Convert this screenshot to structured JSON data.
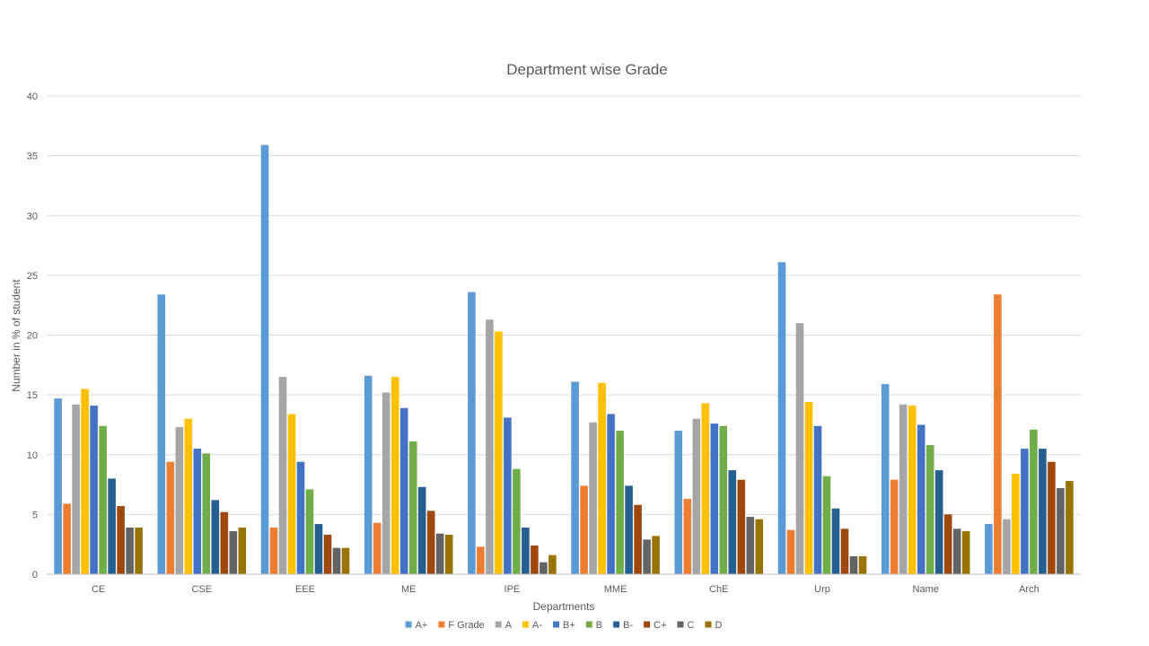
{
  "chart_data": {
    "type": "bar",
    "title": "Department wise Grade",
    "xlabel": "Departments",
    "ylabel": "Number in % of student",
    "ylim": [
      0,
      40
    ],
    "yticks": [
      0,
      5,
      10,
      15,
      20,
      25,
      30,
      35,
      40
    ],
    "grid": true,
    "legend_position": "bottom",
    "categories": [
      "CE",
      "CSE",
      "EEE",
      "ME",
      "IPE",
      "MME",
      "ChE",
      "Urp",
      "Name",
      "Arch"
    ],
    "series": [
      {
        "name": "A+",
        "color": "#5B9BD5",
        "values": [
          14.7,
          23.4,
          35.9,
          16.6,
          23.6,
          16.1,
          12.0,
          26.1,
          15.9,
          4.2
        ]
      },
      {
        "name": "F Grade",
        "color": "#ED7D31",
        "values": [
          5.9,
          9.4,
          3.9,
          4.3,
          2.3,
          7.4,
          6.3,
          3.7,
          7.9,
          23.4
        ]
      },
      {
        "name": "A",
        "color": "#A5A5A5",
        "values": [
          14.2,
          12.3,
          16.5,
          15.2,
          21.3,
          12.7,
          13.0,
          21.0,
          14.2,
          4.6
        ]
      },
      {
        "name": "A-",
        "color": "#FFC000",
        "values": [
          15.5,
          13.0,
          13.4,
          16.5,
          20.3,
          16.0,
          14.3,
          14.4,
          14.1,
          8.4
        ]
      },
      {
        "name": "B+",
        "color": "#4472C4",
        "values": [
          14.1,
          10.5,
          9.4,
          13.9,
          13.1,
          13.4,
          12.6,
          12.4,
          12.5,
          10.5
        ]
      },
      {
        "name": "B",
        "color": "#70AD47",
        "values": [
          12.4,
          10.1,
          7.1,
          11.1,
          8.8,
          12.0,
          12.4,
          8.2,
          10.8,
          12.1
        ]
      },
      {
        "name": "B-",
        "color": "#255E91",
        "values": [
          8.0,
          6.2,
          4.2,
          7.3,
          3.9,
          7.4,
          8.7,
          5.5,
          8.7,
          10.5
        ]
      },
      {
        "name": "C+",
        "color": "#9E480E",
        "values": [
          5.7,
          5.2,
          3.3,
          5.3,
          2.4,
          5.8,
          7.9,
          3.8,
          5.0,
          9.4
        ]
      },
      {
        "name": "C",
        "color": "#636363",
        "values": [
          3.9,
          3.6,
          2.2,
          3.4,
          1.0,
          2.9,
          4.8,
          1.5,
          3.8,
          7.2
        ]
      },
      {
        "name": "D",
        "color": "#997300",
        "values": [
          3.9,
          3.9,
          2.2,
          3.3,
          1.6,
          3.2,
          4.6,
          1.5,
          3.6,
          7.8
        ]
      }
    ]
  }
}
